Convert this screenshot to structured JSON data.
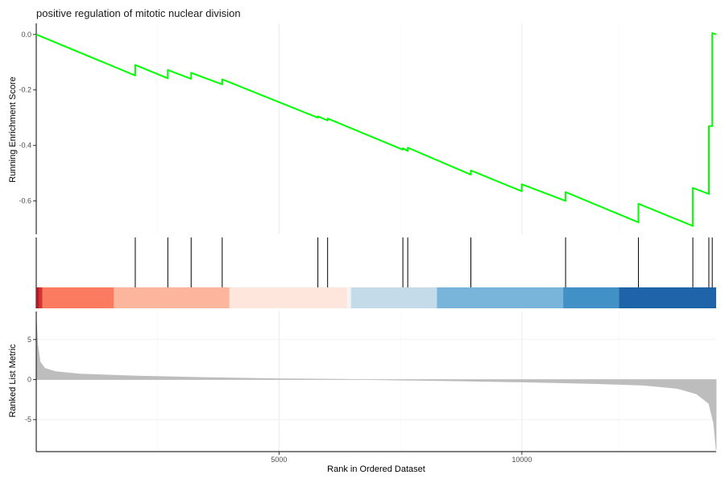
{
  "chart_data": {
    "type": "line",
    "title": "positive regulation of mitotic nuclear division",
    "xlabel": "Rank in Ordered Dataset",
    "ylabel_es": "Running Enrichment Score",
    "ylabel_metric": "Ranked List Metric",
    "xlim": [
      1,
      14000
    ],
    "x_ticks": [
      5000,
      10000
    ],
    "x_tick_labels": [
      "5000",
      "10000"
    ],
    "es_ylim": [
      -0.72,
      0.04
    ],
    "es_y_ticks": [
      0.0,
      -0.2,
      -0.4,
      -0.6
    ],
    "es_y_tick_labels": [
      "0.0",
      "-0.2",
      "-0.4",
      "-0.6"
    ],
    "metric_ylim": [
      -9,
      8.5
    ],
    "metric_y_ticks": [
      5,
      0,
      -5
    ],
    "metric_y_tick_labels": [
      "5",
      "0",
      "-5"
    ],
    "grid": true,
    "series": [
      {
        "points": [
          [
            1,
            0.0
          ],
          [
            2040,
            -0.148
          ],
          [
            2040,
            -0.11
          ],
          [
            2710,
            -0.158
          ],
          [
            2710,
            -0.128
          ],
          [
            3190,
            -0.16
          ],
          [
            3190,
            -0.138
          ],
          [
            3830,
            -0.18
          ],
          [
            3830,
            -0.162
          ],
          [
            5800,
            -0.3
          ],
          [
            5800,
            -0.295
          ],
          [
            6000,
            -0.31
          ],
          [
            6000,
            -0.303
          ],
          [
            7550,
            -0.415
          ],
          [
            7550,
            -0.41
          ],
          [
            7650,
            -0.42
          ],
          [
            7650,
            -0.408
          ],
          [
            8950,
            -0.505
          ],
          [
            8950,
            -0.49
          ],
          [
            10000,
            -0.565
          ],
          [
            10000,
            -0.54
          ],
          [
            10900,
            -0.6
          ],
          [
            10900,
            -0.568
          ],
          [
            12400,
            -0.677
          ],
          [
            12400,
            -0.61
          ],
          [
            13520,
            -0.69
          ],
          [
            13520,
            -0.553
          ],
          [
            13850,
            -0.575
          ],
          [
            13850,
            -0.33
          ],
          [
            13920,
            -0.33
          ],
          [
            13920,
            0.005
          ],
          [
            14000,
            0.0
          ]
        ]
      }
    ],
    "hits": [
      2040,
      2710,
      3190,
      3830,
      5800,
      6000,
      7550,
      7650,
      8950,
      10900,
      12400,
      13520,
      13850,
      13920
    ],
    "rank_metric_profile": [
      [
        1,
        7.8
      ],
      [
        30,
        4.5
      ],
      [
        80,
        2.2
      ],
      [
        180,
        1.4
      ],
      [
        400,
        1.0
      ],
      [
        900,
        0.7
      ],
      [
        2000,
        0.45
      ],
      [
        3500,
        0.25
      ],
      [
        5000,
        0.1
      ],
      [
        6800,
        0.0
      ],
      [
        8500,
        -0.15
      ],
      [
        10000,
        -0.3
      ],
      [
        11500,
        -0.5
      ],
      [
        12500,
        -0.7
      ],
      [
        13200,
        -1.1
      ],
      [
        13600,
        -1.8
      ],
      [
        13850,
        -3.0
      ],
      [
        13950,
        -5.5
      ],
      [
        14000,
        -8.8
      ]
    ],
    "colors": {
      "line": "#00ff00",
      "hit": "#000000",
      "metric_fill": "#bdbdbd",
      "heat_bands": [
        {
          "from": 1,
          "to": 60,
          "color": "#b2182b"
        },
        {
          "from": 60,
          "to": 130,
          "color": "#d6342b"
        },
        {
          "from": 130,
          "to": 1600,
          "color": "#fb7b60"
        },
        {
          "from": 1600,
          "to": 3980,
          "color": "#fdb69e"
        },
        {
          "from": 3980,
          "to": 6400,
          "color": "#fee6dc"
        },
        {
          "from": 6400,
          "to": 6480,
          "color": "#f4f4f4"
        },
        {
          "from": 6480,
          "to": 8250,
          "color": "#c4dbea"
        },
        {
          "from": 8250,
          "to": 10850,
          "color": "#79b4da"
        },
        {
          "from": 10850,
          "to": 12000,
          "color": "#4190c6"
        },
        {
          "from": 12000,
          "to": 14000,
          "color": "#1f63a8"
        }
      ]
    }
  }
}
